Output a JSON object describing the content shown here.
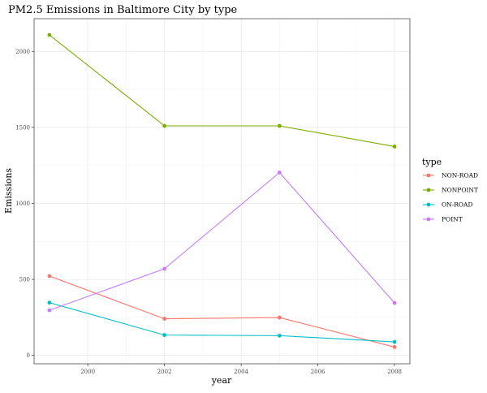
{
  "chart_data": {
    "type": "line",
    "title": "PM2.5 Emissions in Baltimore City by type",
    "xlabel": "year",
    "ylabel": "Emissions",
    "x": [
      1999,
      2002,
      2005,
      2008
    ],
    "xlim": [
      1998.6,
      2008.4
    ],
    "ylim": [
      -55,
      2215
    ],
    "xticks": [
      2000,
      2002,
      2004,
      2006,
      2008
    ],
    "yticks": [
      0,
      500,
      1000,
      1500,
      2000
    ],
    "grid": true,
    "legend": {
      "title": "type",
      "placement": "right"
    },
    "series": [
      {
        "name": "NON-ROAD",
        "color": "#F8766D",
        "values": [
          522,
          241,
          249,
          55
        ]
      },
      {
        "name": "NONPOINT",
        "color": "#7CAE00",
        "values": [
          2108,
          1510,
          1510,
          1374
        ]
      },
      {
        "name": "ON-ROAD",
        "color": "#00BFC4",
        "values": [
          347,
          134,
          130,
          89
        ]
      },
      {
        "name": "POINT",
        "color": "#C77CFF",
        "values": [
          297,
          570,
          1203,
          345
        ]
      }
    ]
  }
}
